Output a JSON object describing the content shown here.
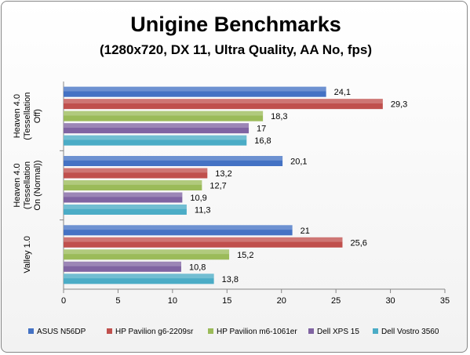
{
  "chart_data": {
    "type": "bar",
    "orientation": "horizontal",
    "title": "Unigine Benchmarks",
    "subtitle": "(1280x720, DX 11, Ultra Quality, AA No, fps)",
    "categories": [
      [
        "Heaven 4.0",
        "(Tessellation",
        "Off)"
      ],
      [
        "Heaven 4.0",
        "(Tessellation",
        "On (Normal))"
      ],
      [
        "Valley 1.0"
      ]
    ],
    "series": [
      {
        "name": "ASUS N56DP",
        "color": "#4472C4",
        "values": [
          24.1,
          20.1,
          21
        ]
      },
      {
        "name": "HP Pavilion g6-2209sr",
        "color": "#C0504D",
        "values": [
          29.3,
          13.2,
          25.6
        ]
      },
      {
        "name": "HP Pavilion m6-1061er",
        "color": "#9BBB59",
        "values": [
          18.3,
          12.7,
          15.2
        ]
      },
      {
        "name": "Dell XPS 15",
        "color": "#8064A2",
        "values": [
          17,
          10.9,
          10.8
        ]
      },
      {
        "name": "Dell Vostro 3560",
        "color": "#4BACC6",
        "values": [
          16.8,
          11.3,
          13.8
        ]
      }
    ],
    "data_labels": [
      [
        "24,1",
        "20,1",
        "21"
      ],
      [
        "29,3",
        "13,2",
        "25,6"
      ],
      [
        "18,3",
        "12,7",
        "15,2"
      ],
      [
        "17",
        "10,9",
        "10,8"
      ],
      [
        "16,8",
        "11,3",
        "13,8"
      ]
    ],
    "xlim": [
      0,
      35
    ],
    "xticks": [
      0,
      5,
      10,
      15,
      20,
      25,
      30,
      35
    ],
    "grid": false,
    "legend": "bottom"
  }
}
